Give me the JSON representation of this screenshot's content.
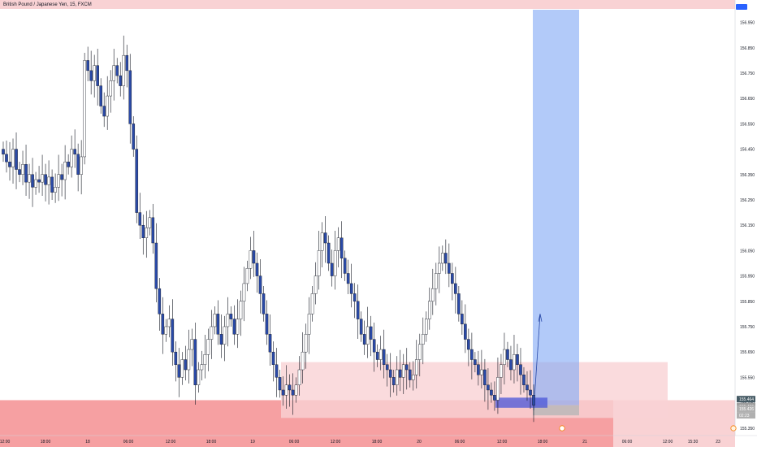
{
  "header": {
    "symbol_title": "British Pound / Japanese Yen, 15, FXCM"
  },
  "colors": {
    "up_body": "#ffffff",
    "down_body": "#2a4aa8",
    "wick": "#131722",
    "grid": "#f0f3fa",
    "zone_light": "#f9d2d4",
    "zone_strong": "#f58f92",
    "long_target": "#7ea6f5",
    "long_stop": "#b7b7b7",
    "price_tag": "#455a64"
  },
  "chart_data": {
    "type": "candlestick",
    "title": "British Pound / Japanese Yen, 15, FXCM",
    "y_ticks": [
      "156.950",
      "156.850",
      "156.750",
      "156.650",
      "156.550",
      "156.450",
      "156.350",
      "156.250",
      "156.150",
      "156.050",
      "155.950",
      "155.850",
      "155.750",
      "155.650",
      "155.550",
      "155.450",
      "155.350"
    ],
    "ylim": [
      155.33,
      157.0
    ],
    "x_ticks": [
      "12:00",
      "18:00",
      "18",
      "06:00",
      "12:00",
      "18:00",
      "19",
      "06:00",
      "12:00",
      "18:00",
      "20",
      "06:00",
      "12:00",
      "18:00",
      "21",
      "06:00",
      "12:00",
      "15:30",
      "23"
    ],
    "price_labels": [
      "155.464",
      "155.436",
      "155.426",
      "02:23"
    ],
    "close_values": [
      156.43,
      156.4,
      156.38,
      156.45,
      156.37,
      156.35,
      156.39,
      156.32,
      156.35,
      156.3,
      156.33,
      156.32,
      156.35,
      156.31,
      156.34,
      156.28,
      156.3,
      156.35,
      156.33,
      156.4,
      156.38,
      156.45,
      156.43,
      156.35,
      156.42,
      156.8,
      156.76,
      156.72,
      156.78,
      156.7,
      156.62,
      156.58,
      156.66,
      156.72,
      156.78,
      156.74,
      156.7,
      156.82,
      156.76,
      156.55,
      156.45,
      156.2,
      156.15,
      156.1,
      156.14,
      156.18,
      156.08,
      155.9,
      155.8,
      155.72,
      155.75,
      155.78,
      155.65,
      155.6,
      155.55,
      155.62,
      155.58,
      155.66,
      155.7,
      155.52,
      155.58,
      155.6,
      155.64,
      155.7,
      155.75,
      155.8,
      155.72,
      155.68,
      155.75,
      155.8,
      155.78,
      155.72,
      155.78,
      155.85,
      155.92,
      155.98,
      156.05,
      156.0,
      155.95,
      155.88,
      155.8,
      155.72,
      155.65,
      155.6,
      155.55,
      155.5,
      155.48,
      155.52,
      155.5,
      155.48,
      155.52,
      155.58,
      155.65,
      155.72,
      155.8,
      155.88,
      155.95,
      156.05,
      156.12,
      156.08,
      156.0,
      155.95,
      156.05,
      156.1,
      156.02,
      155.96,
      155.92,
      155.88,
      155.85,
      155.78,
      155.72,
      155.68,
      155.75,
      155.7,
      155.65,
      155.62,
      155.66,
      155.6,
      155.58,
      155.55,
      155.52,
      155.58,
      155.55,
      155.6,
      155.58,
      155.54,
      155.56,
      155.62,
      155.68,
      155.72,
      155.78,
      155.85,
      155.9,
      155.96,
      156.0,
      156.04,
      156.0,
      155.96,
      155.92,
      155.88,
      155.8,
      155.76,
      155.7,
      155.66,
      155.62,
      155.6,
      155.56,
      155.58,
      155.52,
      155.5,
      155.48,
      155.46,
      155.55,
      155.6,
      155.66,
      155.62,
      155.58,
      155.64,
      155.6,
      155.56,
      155.52,
      155.5,
      155.48,
      155.44
    ]
  },
  "overlays": {
    "long_position_label": "",
    "icon_a": "flag-icon",
    "icon_b": "calendar-icon"
  }
}
